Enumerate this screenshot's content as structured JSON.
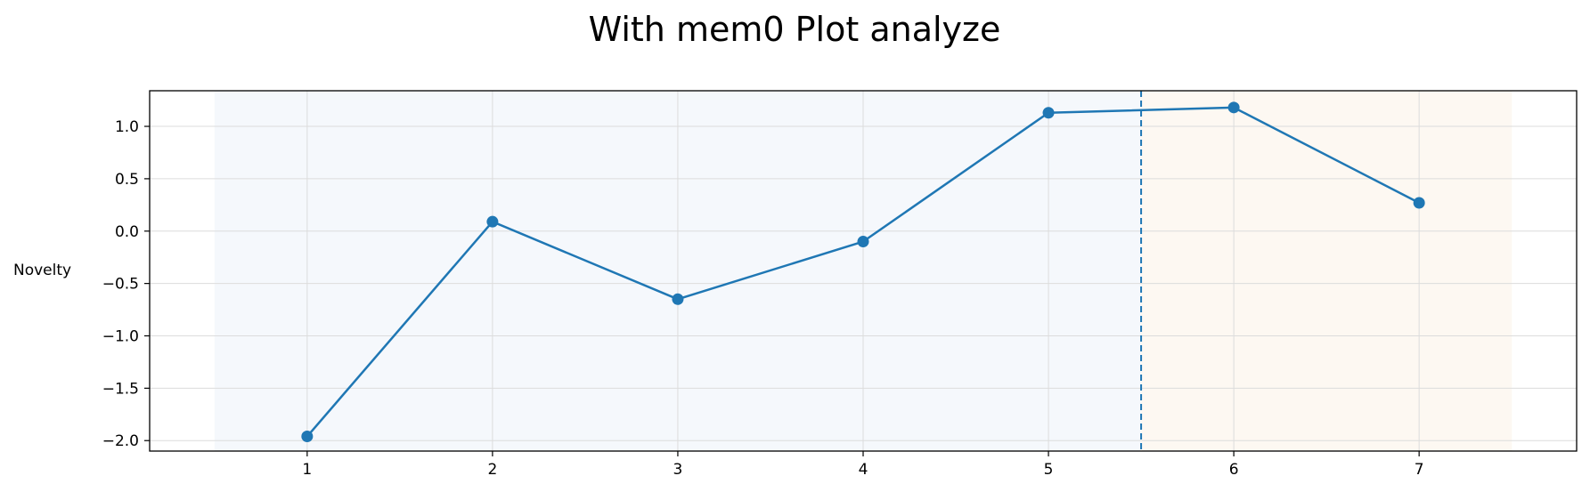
{
  "chart_data": {
    "type": "line",
    "title": "With mem0 Plot analyze",
    "xlabel": "",
    "ylabel": "Novelty",
    "x": [
      1,
      2,
      3,
      4,
      5,
      6,
      7
    ],
    "series": [
      {
        "values": [
          -1.96,
          0.09,
          -0.65,
          -0.1,
          1.13,
          1.18,
          0.27
        ],
        "color": "#1f77b4",
        "marker": "circle"
      }
    ],
    "xticks": [
      "1",
      "2",
      "3",
      "4",
      "5",
      "6",
      "7"
    ],
    "yticks": [
      "1.0",
      "0.5",
      "0.0",
      "−0.5",
      "−1.0",
      "−1.5",
      "−2.0"
    ],
    "ytick_values": [
      1.0,
      0.5,
      0.0,
      -0.5,
      -1.0,
      -1.5,
      -2.0
    ],
    "xlim": [
      0.15,
      7.85
    ],
    "ylim": [
      -2.1,
      1.34
    ],
    "grid": true,
    "shaded_regions": [
      {
        "x_start": 0.5,
        "x_end": 5.5,
        "color": "#f5f8fc"
      },
      {
        "x_start": 5.5,
        "x_end": 7.5,
        "color": "#fdf8f2"
      }
    ],
    "vertical_line": {
      "x": 5.5,
      "style": "dashed",
      "color": "#1f77b4"
    }
  }
}
